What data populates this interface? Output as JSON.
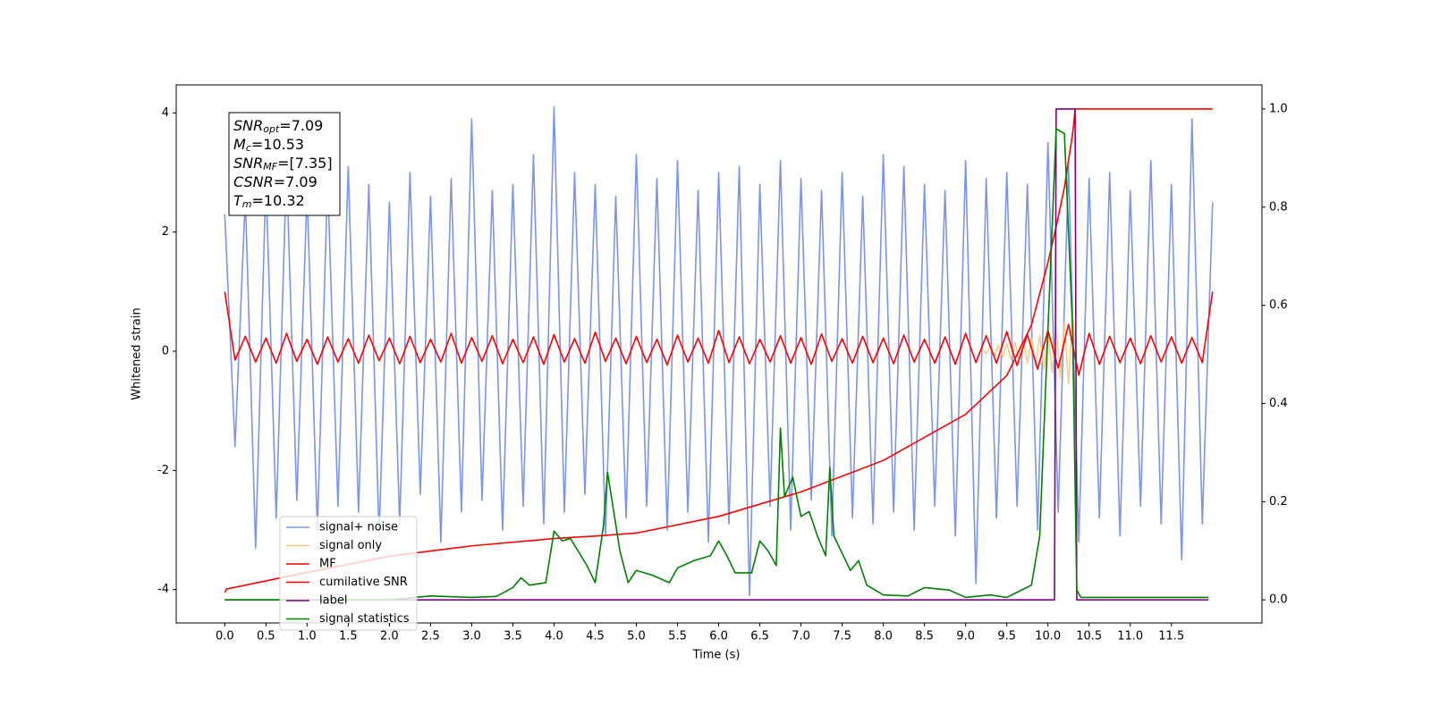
{
  "chart_data": {
    "type": "line",
    "xlabel": "Time (s)",
    "ylabel": "Whitened strain",
    "xlim": [
      -0.59,
      12.6
    ],
    "ylim": [
      -4.56,
      4.47
    ],
    "y2lim": [
      -0.047,
      1.049
    ],
    "xticks": [
      {
        "value": 0,
        "label": "0.0"
      },
      0.5,
      {
        "value": 1,
        "label": "1.0"
      },
      1.5,
      {
        "value": 2,
        "label": "2.0"
      },
      2.5,
      {
        "value": 3,
        "label": "3.0"
      },
      3.5,
      {
        "value": 4,
        "label": "4.0"
      },
      4.5,
      {
        "value": 5,
        "label": "5.0"
      },
      5.5,
      {
        "value": 6,
        "label": "6.0"
      },
      6.5,
      {
        "value": 7,
        "label": "7.0"
      },
      7.5,
      {
        "value": 8,
        "label": "8.0"
      },
      8.5,
      {
        "value": 9,
        "label": "9.0"
      },
      9.5,
      {
        "value": 10,
        "label": "10.0"
      },
      10.5,
      {
        "value": 11,
        "label": "11.0"
      },
      11.5
    ],
    "yticks": [
      -4,
      -2,
      0,
      2,
      4
    ],
    "y2ticks": [
      {
        "value": 0,
        "label": "0.0"
      },
      0.2,
      0.4,
      0.6,
      0.8,
      {
        "value": 1,
        "label": "1.0"
      }
    ],
    "x": [
      0,
      0.125,
      0.25,
      0.375,
      0.5,
      0.625,
      0.75,
      0.875,
      1,
      1.125,
      1.25,
      1.375,
      1.5,
      1.625,
      1.75,
      1.875,
      2,
      2.125,
      2.25,
      2.375,
      2.5,
      2.625,
      2.75,
      2.875,
      3,
      3.125,
      3.25,
      3.375,
      3.5,
      3.625,
      3.75,
      3.875,
      4,
      4.125,
      4.25,
      4.375,
      4.5,
      4.625,
      4.75,
      4.875,
      5,
      5.125,
      5.25,
      5.375,
      5.5,
      5.625,
      5.75,
      5.875,
      6,
      6.125,
      6.25,
      6.375,
      6.5,
      6.625,
      6.75,
      6.875,
      7,
      7.125,
      7.25,
      7.375,
      7.5,
      7.625,
      7.75,
      7.875,
      8,
      8.125,
      8.25,
      8.375,
      8.5,
      8.625,
      8.75,
      8.875,
      9,
      9.125,
      9.25,
      9.375,
      9.5,
      9.625,
      9.75,
      9.875,
      10,
      10.125,
      10.25,
      10.375,
      10.5,
      10.625,
      10.75,
      10.875,
      11,
      11.125,
      11.25,
      11.375,
      11.5,
      11.625,
      11.75,
      11.875,
      12
    ],
    "annotations": [
      {
        "text": "SNR",
        "sub": "opt",
        "rest": "=7.09"
      },
      {
        "text": "M",
        "sub": "c",
        "rest": "=10.53"
      },
      {
        "text": "SNR",
        "sub": "MF",
        "rest": "=[7.35]"
      },
      {
        "text": "CSNR",
        "rest": "=7.09"
      },
      {
        "text": "T",
        "sub": "m",
        "rest": "=10.32"
      }
    ],
    "series": [
      {
        "name": "signal+ noise",
        "color": "#7b96e8",
        "values": [
          2.3,
          -1.6,
          2.6,
          -3.3,
          2.9,
          -2.8,
          3.1,
          -2.5,
          2.7,
          -3.0,
          2.9,
          -2.6,
          3.1,
          -2.7,
          2.8,
          -3.1,
          2.5,
          -2.9,
          3.0,
          -2.4,
          2.6,
          -3.2,
          2.9,
          -2.7,
          3.9,
          -2.5,
          2.7,
          -3.0,
          2.8,
          -2.6,
          3.3,
          -2.9,
          4.1,
          -2.7,
          3.0,
          -2.4,
          2.8,
          -3.1,
          2.6,
          -2.8,
          3.3,
          -2.6,
          2.9,
          -3.0,
          3.2,
          -2.7,
          2.7,
          -3.2,
          3.0,
          -2.9,
          3.1,
          -4.1,
          2.8,
          -2.6,
          3.2,
          -3.0,
          2.9,
          -2.5,
          2.7,
          -3.1,
          3.0,
          -2.8,
          2.6,
          -2.9,
          3.3,
          -2.7,
          3.1,
          -3.0,
          2.8,
          -2.6,
          2.7,
          -3.1,
          3.2,
          -3.9,
          2.9,
          -2.8,
          3.0,
          -2.6,
          2.8,
          -3.0,
          3.5,
          -2.7,
          3.1,
          -3.2,
          2.9,
          -2.8,
          3.0,
          -3.1,
          2.7,
          -2.6,
          3.2,
          -2.9,
          2.8,
          -3.5,
          3.9,
          -2.9,
          2.5
        ]
      },
      {
        "name": "signal only",
        "color": "#f5c97a",
        "x": [
          9.2,
          9.25,
          9.3,
          9.35,
          9.4,
          9.45,
          9.5,
          9.55,
          9.6,
          9.65,
          9.7,
          9.75,
          9.8,
          9.85,
          9.9,
          9.95,
          10,
          10.05,
          10.1,
          10.15,
          10.2,
          10.25,
          10.3,
          10.35
        ],
        "values": [
          0.05,
          -0.05,
          0.08,
          -0.08,
          0.1,
          -0.1,
          0.13,
          -0.13,
          0.15,
          -0.16,
          0.18,
          -0.2,
          0.22,
          -0.24,
          0.27,
          -0.3,
          0.33,
          -0.36,
          0.4,
          -0.45,
          0.5,
          -0.55,
          0.6,
          -0.2
        ]
      },
      {
        "name": "MF",
        "color": "#ff0000",
        "values": [
          1.0,
          -0.15,
          0.25,
          -0.18,
          0.22,
          -0.2,
          0.3,
          -0.17,
          0.2,
          -0.22,
          0.24,
          -0.18,
          0.21,
          -0.2,
          0.27,
          -0.16,
          0.22,
          -0.21,
          0.25,
          -0.19,
          0.2,
          -0.18,
          0.3,
          -0.2,
          0.23,
          -0.17,
          0.26,
          -0.21,
          0.2,
          -0.19,
          0.24,
          -0.22,
          0.28,
          -0.18,
          0.21,
          -0.2,
          0.32,
          -0.17,
          0.22,
          -0.21,
          0.25,
          -0.19,
          0.2,
          -0.23,
          0.27,
          -0.18,
          0.22,
          -0.2,
          0.35,
          -0.19,
          0.24,
          -0.21,
          0.2,
          -0.18,
          0.26,
          -0.2,
          0.23,
          -0.22,
          0.29,
          -0.17,
          0.21,
          -0.2,
          0.25,
          -0.19,
          0.22,
          -0.21,
          0.27,
          -0.18,
          0.2,
          -0.2,
          0.24,
          -0.22,
          0.3,
          -0.19,
          0.26,
          -0.2,
          0.33,
          -0.24,
          0.28,
          -0.3,
          0.35,
          -0.28,
          0.45,
          -0.4,
          0.3,
          -0.22,
          0.25,
          -0.19,
          0.22,
          -0.21,
          0.26,
          -0.18,
          0.24,
          -0.2,
          0.23,
          -0.19,
          1.0
        ]
      },
      {
        "name": "cumilative SNR",
        "color": "#ff0000",
        "axis": "y2",
        "x": [
          0,
          0.02,
          1,
          2,
          3,
          4,
          4.5,
          5,
          6,
          7,
          8,
          9,
          9.5,
          9.8,
          10,
          10.1,
          10.2,
          10.3,
          10.32,
          10.33,
          12
        ],
        "values": [
          0.015,
          0.022,
          0.056,
          0.089,
          0.11,
          0.125,
          0.13,
          0.136,
          0.17,
          0.22,
          0.284,
          0.378,
          0.457,
          0.56,
          0.687,
          0.76,
          0.84,
          0.95,
          0.98,
          1.0,
          1.0
        ]
      },
      {
        "name": "label",
        "color": "#800080",
        "axis": "y2",
        "x": [
          0,
          10.08,
          10.1,
          10.33,
          10.35,
          11.95
        ],
        "values": [
          0,
          0,
          1,
          1,
          0,
          0
        ]
      },
      {
        "name": "signal statistics",
        "color": "#008000",
        "axis": "y2",
        "x": [
          0,
          2,
          2.5,
          3,
          3.3,
          3.5,
          3.6,
          3.7,
          3.9,
          4,
          4.1,
          4.2,
          4.4,
          4.5,
          4.6,
          4.65,
          4.8,
          4.9,
          5,
          5.2,
          5.4,
          5.5,
          5.7,
          5.9,
          6,
          6.1,
          6.2,
          6.4,
          6.5,
          6.6,
          6.7,
          6.75,
          6.8,
          6.9,
          7,
          7.1,
          7.2,
          7.3,
          7.35,
          7.4,
          7.6,
          7.7,
          7.8,
          8,
          8.3,
          8.5,
          8.8,
          9,
          9.3,
          9.5,
          9.8,
          9.9,
          10,
          10.1,
          10.2,
          10.3,
          10.35,
          10.4,
          11,
          11.95
        ],
        "values": [
          0,
          0,
          0.008,
          0.005,
          0.007,
          0.025,
          0.045,
          0.03,
          0.035,
          0.14,
          0.12,
          0.125,
          0.07,
          0.035,
          0.15,
          0.26,
          0.1,
          0.035,
          0.06,
          0.05,
          0.035,
          0.065,
          0.08,
          0.09,
          0.12,
          0.09,
          0.055,
          0.055,
          0.12,
          0.1,
          0.07,
          0.35,
          0.21,
          0.25,
          0.17,
          0.18,
          0.13,
          0.09,
          0.27,
          0.13,
          0.06,
          0.08,
          0.03,
          0.01,
          0.008,
          0.025,
          0.02,
          0.005,
          0.01,
          0.005,
          0.03,
          0.13,
          0.55,
          0.96,
          0.95,
          0.55,
          0.02,
          0.005,
          0.005,
          0.005
        ]
      }
    ]
  }
}
